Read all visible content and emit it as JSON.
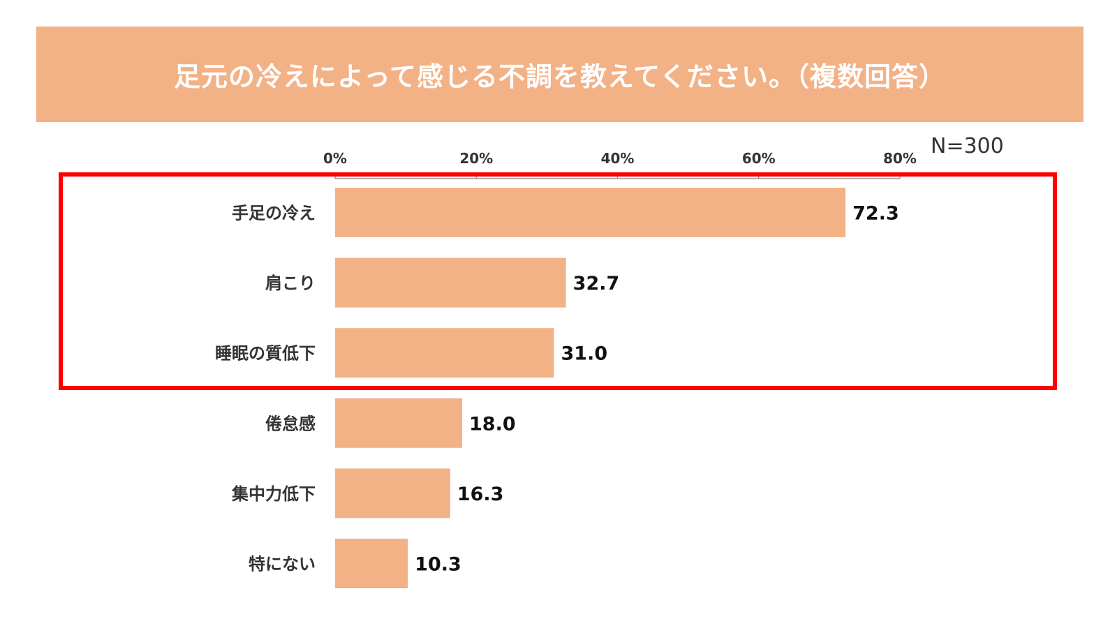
{
  "title": "足元の冷えによって感じる不調を教えてください。（複数回答）",
  "sample_size": "N=300",
  "colors": {
    "banner": "#F3B186",
    "bar": "#F3B186",
    "highlight": "#FF0000",
    "axis": "#999999",
    "label_text": "#333333",
    "value_text": "#111111"
  },
  "chart_data": {
    "type": "bar",
    "orientation": "horizontal",
    "title": "足元の冷えによって感じる不調を教えてください。（複数回答）",
    "categories": [
      "手足の冷え",
      "肩こり",
      "睡眠の質低下",
      "倦怠感",
      "集中力低下",
      "特にない"
    ],
    "values": [
      72.3,
      32.7,
      31.0,
      18.0,
      16.3,
      10.3
    ],
    "value_labels": [
      "72.3",
      "32.7",
      "31.0",
      "18.0",
      "16.3",
      "10.3"
    ],
    "xlim": [
      0,
      80
    ],
    "x_ticks": [
      0,
      20,
      40,
      60,
      80
    ],
    "x_tick_labels": [
      "0%",
      "20%",
      "40%",
      "60%",
      "80%"
    ],
    "x_axis_position": "top",
    "grid": false,
    "highlighted_categories": [
      "手足の冷え",
      "肩こり",
      "睡眠の質低下"
    ]
  }
}
